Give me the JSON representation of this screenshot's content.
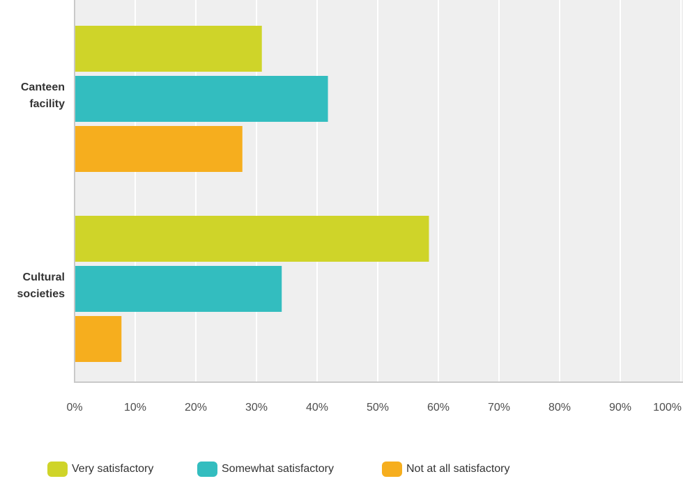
{
  "chart_data": {
    "type": "bar",
    "orientation": "horizontal",
    "categories": [
      "Canteen facility",
      "Cultural societies"
    ],
    "series": [
      {
        "name": "Very satisfactory",
        "color": "#cfd429",
        "values": [
          30.77,
          58.33
        ]
      },
      {
        "name": "Somewhat satisfactory",
        "color": "#33bdbf",
        "values": [
          41.67,
          34.05
        ]
      },
      {
        "name": "Not at all satisfactory",
        "color": "#f6ae1e",
        "values": [
          27.56,
          7.62
        ]
      }
    ],
    "xlim": [
      0,
      100
    ],
    "x_ticks": [
      "0%",
      "10%",
      "20%",
      "30%",
      "40%",
      "50%",
      "60%",
      "70%",
      "80%",
      "90%",
      "100%"
    ],
    "grid": true,
    "legend_position": "bottom",
    "plot_background": "#efefef"
  }
}
